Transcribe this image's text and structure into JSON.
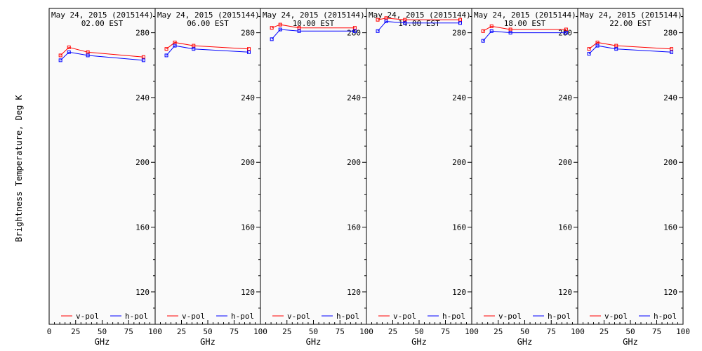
{
  "ylabel": "Brightness Temperature, Deg K",
  "colors": {
    "v_pol": "#ff0000",
    "h_pol": "#0000ff",
    "axis": "#000000",
    "panel_bg": "#fafafa"
  },
  "chart_data": {
    "type": "line",
    "ylabel": "Brightness Temperature, Deg K",
    "ylim": [
      100,
      295
    ],
    "xlim": [
      0,
      100
    ],
    "yticks": [
      120,
      160,
      200,
      240,
      280
    ],
    "legend_position": "bottom",
    "grid": false,
    "panels": [
      {
        "title_line1": "May 24, 2015 (2015144)",
        "title_line2": "02.00 EST",
        "xlabel": "GHz",
        "xticks": [
          "0",
          "25",
          "50",
          "75",
          "100"
        ],
        "x": [
          10.7,
          18.7,
          36.5,
          89.0
        ],
        "series": [
          {
            "name": "v-pol",
            "color": "#ff0000",
            "values": [
              266,
              271,
              268,
              265
            ]
          },
          {
            "name": "h-pol",
            "color": "#0000ff",
            "values": [
              263,
              268,
              266,
              263
            ]
          }
        ]
      },
      {
        "title_line1": "May 24, 2015 (2015144)",
        "title_line2": "06.00 EST",
        "xlabel": "GHz",
        "xticks": [
          "25",
          "50",
          "75",
          "100"
        ],
        "x": [
          10.7,
          18.7,
          36.5,
          89.0
        ],
        "series": [
          {
            "name": "v-pol",
            "color": "#ff0000",
            "values": [
              270,
              274,
              272,
              270
            ]
          },
          {
            "name": "h-pol",
            "color": "#0000ff",
            "values": [
              266,
              272,
              270,
              268
            ]
          }
        ]
      },
      {
        "title_line1": "May 24, 2015 (2015144)",
        "title_line2": "10.00 EST",
        "xlabel": "GHz",
        "xticks": [
          "25",
          "50",
          "75",
          "100"
        ],
        "x": [
          10.7,
          18.7,
          36.5,
          89.0
        ],
        "series": [
          {
            "name": "v-pol",
            "color": "#ff0000",
            "values": [
              283,
              285,
              283,
              283
            ]
          },
          {
            "name": "h-pol",
            "color": "#0000ff",
            "values": [
              276,
              282,
              281,
              281
            ]
          }
        ]
      },
      {
        "title_line1": "May 24, 2015 (2015144)",
        "title_line2": "14.00 EST",
        "xlabel": "GHz",
        "xticks": [
          "25",
          "50",
          "75",
          "100"
        ],
        "x": [
          10.7,
          18.7,
          36.5,
          89.0
        ],
        "series": [
          {
            "name": "v-pol",
            "color": "#ff0000",
            "values": [
              288,
              289,
              288,
              288
            ]
          },
          {
            "name": "h-pol",
            "color": "#0000ff",
            "values": [
              281,
              287,
              286,
              286
            ]
          }
        ]
      },
      {
        "title_line1": "May 24, 2015 (2015144)",
        "title_line2": "18.00 EST",
        "xlabel": "GHz",
        "xticks": [
          "25",
          "50",
          "75",
          "100"
        ],
        "x": [
          10.7,
          18.7,
          36.5,
          89.0
        ],
        "series": [
          {
            "name": "v-pol",
            "color": "#ff0000",
            "values": [
              281,
              284,
              282,
              282
            ]
          },
          {
            "name": "h-pol",
            "color": "#0000ff",
            "values": [
              275,
              281,
              280,
              280
            ]
          }
        ]
      },
      {
        "title_line1": "May 24, 2015 (2015144)",
        "title_line2": "22.00 EST",
        "xlabel": "GHz",
        "xticks": [
          "25",
          "50",
          "75",
          "100"
        ],
        "x": [
          10.7,
          18.7,
          36.5,
          89.0
        ],
        "series": [
          {
            "name": "v-pol",
            "color": "#ff0000",
            "values": [
              270,
              274,
              272,
              270
            ]
          },
          {
            "name": "h-pol",
            "color": "#0000ff",
            "values": [
              267,
              272,
              270,
              268
            ]
          }
        ]
      }
    ]
  }
}
